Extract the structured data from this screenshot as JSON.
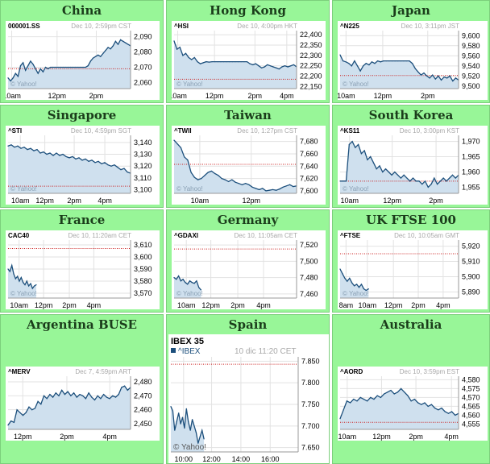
{
  "colors": {
    "header_bg": "#98f698",
    "line": "#1c4f7c",
    "fill": "#cfe0ee",
    "refline": "#cc2222",
    "grid": "#e2e2e2",
    "axis_text": "#000000",
    "meta_text": "#a8a8a8"
  },
  "chart_data": [
    {
      "region": "China",
      "type": "area",
      "symbol": "000001.SS",
      "meta": "Dec 10, 2:59pm CST",
      "watermark": "© Yahoo!",
      "yticks": [
        2060,
        2070,
        2080,
        2090
      ],
      "ylim": [
        2056,
        2094
      ],
      "xticks": [
        {
          "label": "10am",
          "t": 0.03
        },
        {
          "label": "12pm",
          "t": 0.4
        },
        {
          "label": "2pm",
          "t": 0.72
        }
      ],
      "ref": 2069,
      "y": [
        2063,
        2061,
        2063,
        2066,
        2064,
        2071,
        2073,
        2068,
        2071,
        2074,
        2072,
        2069,
        2066,
        2069,
        2067,
        2070,
        2069,
        2070,
        2070,
        2070,
        2070,
        2070,
        2070,
        2070,
        2070,
        2070,
        2070,
        2070,
        2070,
        2070,
        2070,
        2070,
        2071,
        2074,
        2076,
        2077,
        2078,
        2077,
        2079,
        2081,
        2083,
        2082,
        2084,
        2087,
        2085,
        2088,
        2087,
        2086,
        2085,
        2084
      ]
    },
    {
      "region": "Hong Kong",
      "type": "area",
      "symbol": "^HSI",
      "meta": "Dec 10, 4:00pm HKT",
      "watermark": "© Yahoo!",
      "yticks": [
        22150,
        22200,
        22250,
        22300,
        22350,
        22400
      ],
      "ylim": [
        22140,
        22420
      ],
      "xticks": [
        {
          "label": "10am",
          "t": 0.03
        },
        {
          "label": "12pm",
          "t": 0.33
        },
        {
          "label": "2pm",
          "t": 0.66
        },
        {
          "label": "4pm",
          "t": 0.92
        }
      ],
      "ref": 22185,
      "y": [
        22370,
        22330,
        22340,
        22300,
        22310,
        22290,
        22280,
        22290,
        22270,
        22260,
        22265,
        22270,
        22268,
        22270,
        22270,
        22270,
        22270,
        22270,
        22270,
        22270,
        22270,
        22270,
        22270,
        22270,
        22270,
        22270,
        22260,
        22255,
        22260,
        22250,
        22240,
        22245,
        22255,
        22250,
        22245,
        22240,
        22235,
        22245,
        22250,
        22245,
        22250,
        22255,
        22245
      ]
    },
    {
      "region": "Japan",
      "type": "area",
      "symbol": "^N225",
      "meta": "Dec 10, 3:11pm JST",
      "watermark": "© Yahoo!",
      "yticks": [
        9500,
        9520,
        9540,
        9560,
        9580,
        9600
      ],
      "ylim": [
        9495,
        9610
      ],
      "xticks": [
        {
          "label": "10am",
          "t": 0.05
        },
        {
          "label": "12pm",
          "t": 0.36
        },
        {
          "label": "2pm",
          "t": 0.74
        }
      ],
      "ref": 9521,
      "y": [
        9562,
        9550,
        9548,
        9545,
        9540,
        9550,
        9540,
        9530,
        9540,
        9545,
        9542,
        9548,
        9545,
        9550,
        9548,
        9550,
        9550,
        9550,
        9550,
        9550,
        9550,
        9550,
        9550,
        9550,
        9550,
        9545,
        9535,
        9528,
        9522,
        9526,
        9520,
        9516,
        9522,
        9514,
        9520,
        9512,
        9518,
        9516,
        9520,
        9510,
        9516,
        9512
      ]
    },
    {
      "region": "Singapore",
      "type": "area",
      "symbol": "^STI",
      "meta": "Dec 10, 4:59pm SGT",
      "watermark": "© Yahoo!",
      "yticks": [
        3100,
        3110,
        3120,
        3130,
        3140
      ],
      "ylim": [
        3097,
        3146
      ],
      "xticks": [
        {
          "label": "10am",
          "t": 0.1
        },
        {
          "label": "12pm",
          "t": 0.3
        },
        {
          "label": "2pm",
          "t": 0.54
        },
        {
          "label": "4pm",
          "t": 0.79
        }
      ],
      "ref": 3103,
      "y": [
        3137,
        3138,
        3136,
        3137,
        3135,
        3136,
        3134,
        3135,
        3133,
        3134,
        3131,
        3132,
        3130,
        3131,
        3129,
        3131,
        3129,
        3130,
        3128,
        3127,
        3128,
        3126,
        3127,
        3125,
        3126,
        3124,
        3125,
        3123,
        3124,
        3122,
        3123,
        3121,
        3120,
        3121,
        3119,
        3117,
        3118,
        3115,
        3114
      ]
    },
    {
      "region": "Taiwan",
      "type": "area",
      "symbol": "^TWII",
      "meta": "Dec 10, 1:27pm CST",
      "watermark": "© Yahoo!",
      "yticks": [
        7600,
        7620,
        7640,
        7660,
        7680
      ],
      "ylim": [
        7596,
        7690
      ],
      "xticks": [
        {
          "label": "10am",
          "t": 0.21
        },
        {
          "label": "12pm",
          "t": 0.63
        }
      ],
      "ref": 7643,
      "y": [
        7682,
        7676,
        7670,
        7655,
        7650,
        7630,
        7622,
        7618,
        7620,
        7625,
        7630,
        7632,
        7628,
        7625,
        7620,
        7618,
        7615,
        7618,
        7614,
        7612,
        7610,
        7612,
        7610,
        7606,
        7604,
        7602,
        7604,
        7600,
        7601,
        7602,
        7601,
        7603,
        7606,
        7608,
        7610,
        7607,
        7608
      ]
    },
    {
      "region": "South Korea",
      "type": "area",
      "symbol": "^KS11",
      "meta": "Dec 10, 3:00pm KST",
      "watermark": "© Yahoo!",
      "yticks": [
        1955,
        1960,
        1965,
        1970
      ],
      "ylim": [
        1953,
        1972
      ],
      "xticks": [
        {
          "label": "10am",
          "t": 0.08
        },
        {
          "label": "12pm",
          "t": 0.44
        },
        {
          "label": "2pm",
          "t": 0.81
        }
      ],
      "ref": 1957,
      "y": [
        1957,
        1957,
        1957,
        1969,
        1970,
        1968,
        1969,
        1966,
        1967,
        1964,
        1965,
        1963,
        1961,
        1962,
        1960,
        1961,
        1960,
        1959,
        1960,
        1959,
        1958,
        1959,
        1958,
        1957,
        1958,
        1957,
        1957,
        1956,
        1957,
        1955,
        1956,
        1958,
        1956,
        1957,
        1958,
        1957,
        1958,
        1959,
        1958,
        1959
      ]
    },
    {
      "region": "France",
      "type": "area",
      "symbol": "CAC40",
      "meta": "Dec 10, 11:20am CET",
      "watermark": "© Yahoo!",
      "yticks": [
        3570,
        3580,
        3590,
        3600,
        3610
      ],
      "ylim": [
        3566,
        3614
      ],
      "xticks": [
        {
          "label": "10am",
          "t": 0.09
        },
        {
          "label": "12pm",
          "t": 0.29
        },
        {
          "label": "2pm",
          "t": 0.5
        },
        {
          "label": "4pm",
          "t": 0.7
        }
      ],
      "ref": 3607,
      "xmax": 0.23,
      "y": [
        3590,
        3588,
        3593,
        3586,
        3582,
        3584,
        3580,
        3583,
        3579,
        3577,
        3580,
        3576,
        3578,
        3574,
        3576,
        3577
      ]
    },
    {
      "region": "Germany",
      "type": "area",
      "symbol": "^GDAXI",
      "meta": "Dec 10, 11:05am CET",
      "watermark": "© Yahoo!",
      "yticks": [
        7460,
        7480,
        7500,
        7520
      ],
      "ylim": [
        7455,
        7526
      ],
      "xticks": [
        {
          "label": "10am",
          "t": 0.1
        },
        {
          "label": "12pm",
          "t": 0.3
        },
        {
          "label": "2pm",
          "t": 0.52
        },
        {
          "label": "4pm",
          "t": 0.73
        }
      ],
      "ref": 7515,
      "xmax": 0.22,
      "y": [
        7480,
        7478,
        7482,
        7476,
        7478,
        7474,
        7472,
        7476,
        7474,
        7473,
        7476,
        7468,
        7465
      ]
    },
    {
      "region": "UK FTSE 100",
      "type": "area",
      "symbol": "^FTSE",
      "meta": "Dec 10, 10:05am GMT",
      "watermark": "© Yahoo!",
      "yticks": [
        5890,
        5900,
        5910,
        5920
      ],
      "ylim": [
        5886,
        5924
      ],
      "xticks": [
        {
          "label": "8am",
          "t": 0.05
        },
        {
          "label": "10am",
          "t": 0.23
        },
        {
          "label": "12pm",
          "t": 0.45
        },
        {
          "label": "2pm",
          "t": 0.66
        },
        {
          "label": "4pm",
          "t": 0.87
        }
      ],
      "ref": 5915,
      "xmax": 0.24,
      "y": [
        5905,
        5902,
        5899,
        5897,
        5899,
        5896,
        5894,
        5895,
        5893,
        5895,
        5892,
        5891,
        5892
      ]
    },
    {
      "region": "Argentina BUSE",
      "type": "area",
      "symbol": "^MERV",
      "meta": "Dec 7, 4:59pm ART",
      "watermark": "",
      "yticks": [
        2450,
        2460,
        2470,
        2480
      ],
      "ylim": [
        2446,
        2484
      ],
      "xticks": [
        {
          "label": "12pm",
          "t": 0.12
        },
        {
          "label": "2pm",
          "t": 0.48
        },
        {
          "label": "4pm",
          "t": 0.83
        }
      ],
      "ref": null,
      "y": [
        2449,
        2452,
        2451,
        2460,
        2458,
        2456,
        2458,
        2462,
        2460,
        2461,
        2466,
        2464,
        2470,
        2468,
        2471,
        2469,
        2472,
        2470,
        2474,
        2471,
        2473,
        2470,
        2472,
        2469,
        2471,
        2470,
        2468,
        2472,
        2469,
        2467,
        2470,
        2468,
        2471,
        2469,
        2468,
        2470,
        2469,
        2471,
        2476,
        2477,
        2474,
        2476
      ]
    },
    {
      "region": "Spain",
      "type": "area",
      "symbol": "IBEX 35",
      "legend": "^IBEX",
      "meta": "10 dic 11:20 CET",
      "watermark": "© Yahoo!",
      "yticks": [
        7650,
        7700,
        7750,
        7800,
        7850
      ],
      "ylim": [
        7640,
        7860
      ],
      "xticks": [
        {
          "label": "10:00",
          "t": 0.1
        },
        {
          "label": "12:00",
          "t": 0.32
        },
        {
          "label": "14:00",
          "t": 0.55
        },
        {
          "label": "16:00",
          "t": 0.78
        }
      ],
      "ref": 7843,
      "xmax": 0.26,
      "y": [
        7745,
        7735,
        7690,
        7710,
        7730,
        7705,
        7720,
        7695,
        7740,
        7710,
        7690,
        7715,
        7700,
        7685,
        7660,
        7675,
        7690,
        7670
      ]
    },
    {
      "region": "Australia",
      "type": "area",
      "symbol": "^AORD",
      "meta": "Dec 10, 3:59pm EST",
      "watermark": "",
      "yticks": [
        4555,
        4560,
        4565,
        4570,
        4575,
        4580
      ],
      "ylim": [
        4552,
        4582
      ],
      "xticks": [
        {
          "label": "10am",
          "t": 0.06
        },
        {
          "label": "12pm",
          "t": 0.35
        },
        {
          "label": "2pm",
          "t": 0.64
        },
        {
          "label": "4pm",
          "t": 0.94
        }
      ],
      "ref": 4556,
      "y": [
        4558,
        4563,
        4568,
        4567,
        4569,
        4568,
        4570,
        4569,
        4568,
        4570,
        4569,
        4571,
        4570,
        4572,
        4573,
        4574,
        4572,
        4573,
        4575,
        4573,
        4571,
        4568,
        4569,
        4567,
        4566,
        4567,
        4565,
        4566,
        4564,
        4563,
        4564,
        4562,
        4561,
        4562,
        4560,
        4561
      ]
    }
  ]
}
